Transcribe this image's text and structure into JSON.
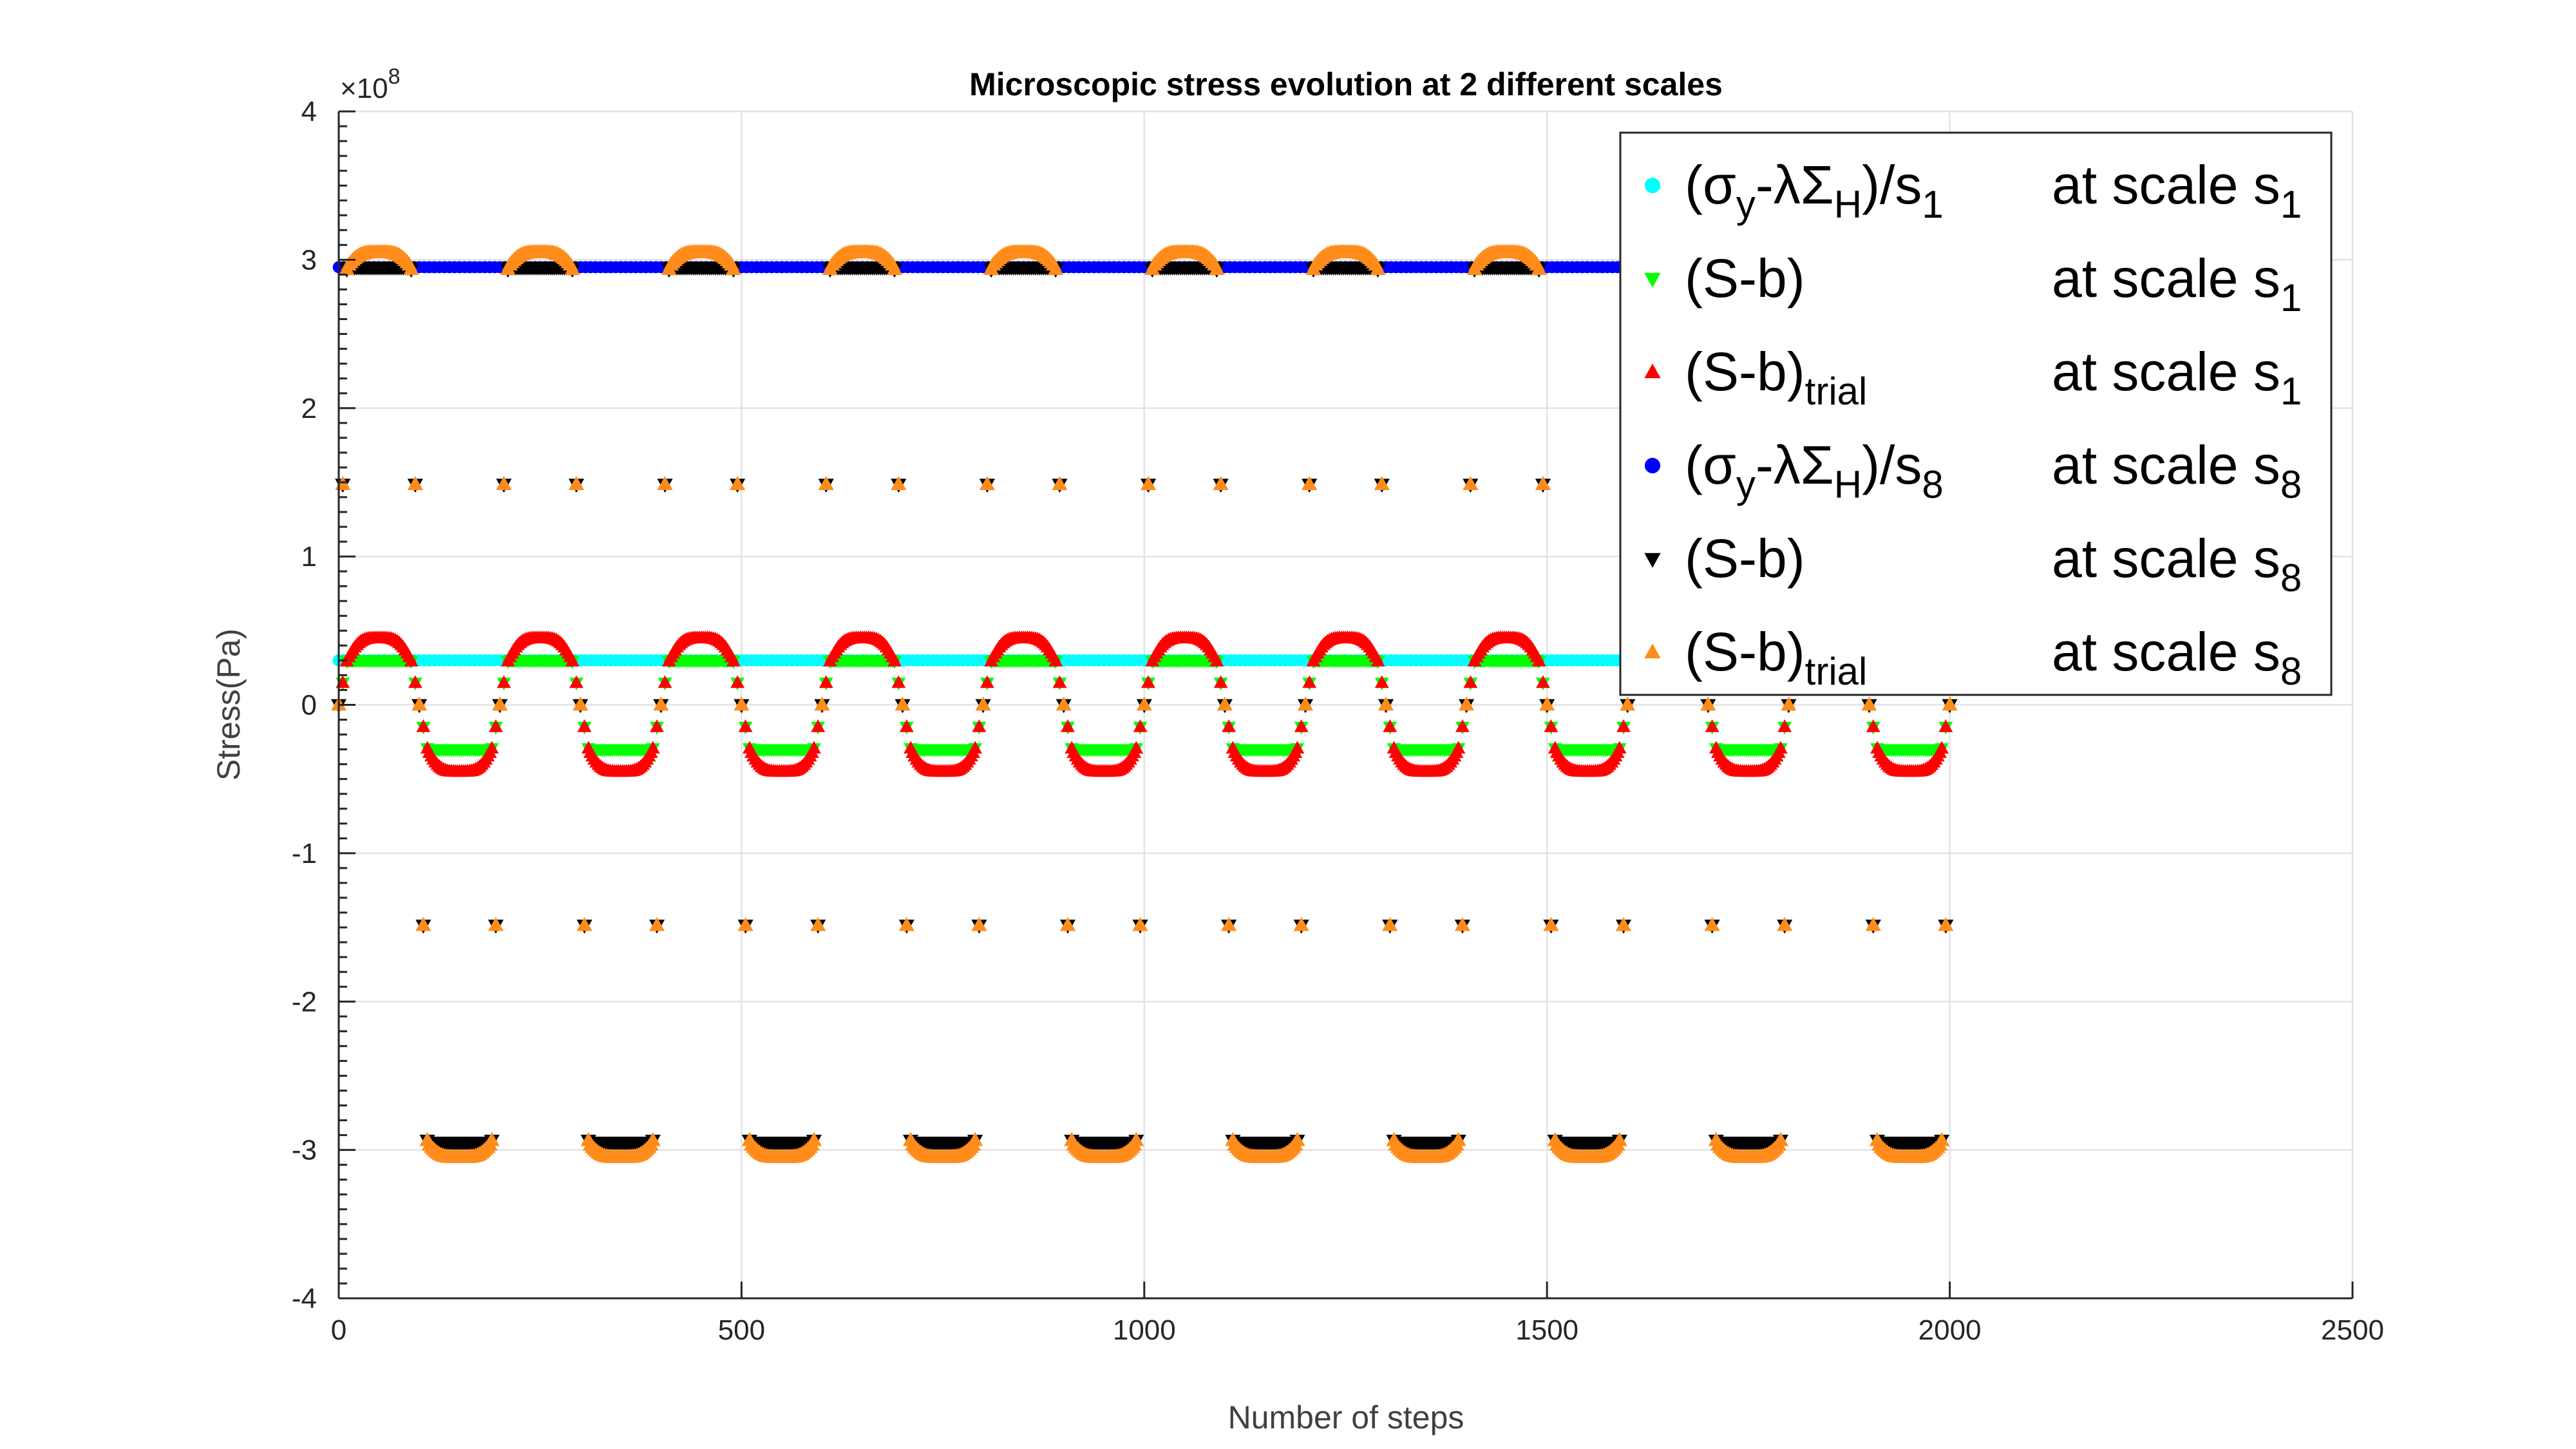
{
  "chart_data": {
    "type": "scatter",
    "title": "Microscopic stress evolution at 2 different scales",
    "xlabel": "Number of steps",
    "ylabel": "Stress(Pa)",
    "y_exponent_label": "×10",
    "y_exponent_power": "8",
    "xlim": [
      0,
      2500
    ],
    "ylim": [
      -4,
      4
    ],
    "y_scale": 100000000,
    "x_ticks": [
      0,
      500,
      1000,
      1500,
      2000,
      2500
    ],
    "x_tick_labels": [
      "0",
      "500",
      "1000",
      "1500",
      "2000",
      "2500"
    ],
    "y_ticks": [
      -4,
      -3,
      -2,
      -1,
      0,
      1,
      2,
      3,
      4
    ],
    "y_tick_labels": [
      "-4",
      "-3",
      "-2",
      "-1",
      "0",
      "1",
      "2",
      "3",
      "4"
    ],
    "grid": true,
    "legend_position": "top-right",
    "x_data_end": 2000,
    "cycle_period": 200,
    "points_per_cycle": 40,
    "series": [
      {
        "label_main": "(σ",
        "label_sub1": "y",
        "label_mid": "-λΣ",
        "label_sub2": "H",
        "label_tail": ")/s",
        "label_sub3": "1",
        "scale_text": "at scale s",
        "scale_sub": "1",
        "color": "#00ffff",
        "marker": "circle",
        "kind": "threshold",
        "value": 0.3
      },
      {
        "label_main": "(S-b)",
        "label_sub": "",
        "scale_text": "at scale s",
        "scale_sub": "1",
        "color": "#00ff00",
        "marker": "triangle-down",
        "kind": "clipped",
        "amplitude": 0.95,
        "clip": 0.3
      },
      {
        "label_main": "(S-b)",
        "label_sub": "trial",
        "scale_text": "at scale s",
        "scale_sub": "1",
        "color": "#ff0000",
        "marker": "triangle-up",
        "kind": "clipped_overshoot",
        "amplitude": 0.95,
        "clip": 0.3,
        "peak": 0.45
      },
      {
        "label_main": "(σ",
        "label_sub1": "y",
        "label_mid": "-λΣ",
        "label_sub2": "H",
        "label_tail": ")/s",
        "label_sub3": "8",
        "scale_text": "at scale s",
        "scale_sub": "8",
        "color": "#0000ff",
        "marker": "circle",
        "kind": "threshold",
        "value": 2.95
      },
      {
        "label_main": "(S-b)",
        "label_sub": "",
        "scale_text": "at scale s",
        "scale_sub": "8",
        "color": "#000000",
        "marker": "triangle-down",
        "kind": "clipped",
        "amplitude": 9.5,
        "clip": 2.95
      },
      {
        "label_main": "(S-b)",
        "label_sub": "trial",
        "scale_text": "at scale s",
        "scale_sub": "8",
        "color": "#ff8c1a",
        "marker": "triangle-up",
        "kind": "clipped_overshoot",
        "amplitude": 9.5,
        "clip": 2.95,
        "peak": 3.05
      }
    ]
  }
}
